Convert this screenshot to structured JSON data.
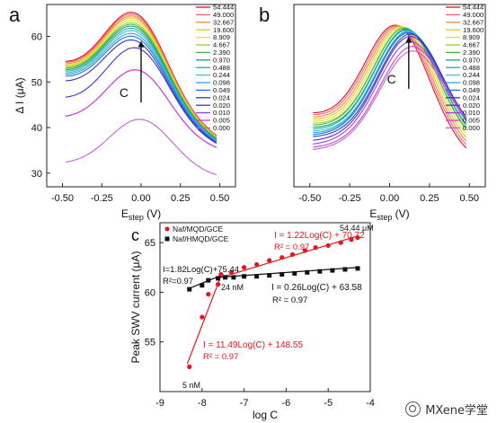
{
  "chart_data": [
    {
      "panel_label": "a",
      "type": "line",
      "xlabel": "E",
      "xlabel_sub": "step",
      "xlabel_unit": " (V)",
      "ylabel": "Δ I (μA)",
      "xlim": [
        -0.6,
        0.6
      ],
      "ylim": [
        27,
        67
      ],
      "xticks": [
        -0.5,
        -0.25,
        0.0,
        0.25,
        0.5
      ],
      "xtick_labels": [
        "-0.50",
        "-0.25",
        "0.00",
        "0.25",
        "0.50"
      ],
      "yticks": [
        30,
        40,
        50,
        60
      ],
      "ytick_labels": [
        "30",
        "40",
        "50",
        "60"
      ],
      "x_range": [
        -0.48,
        0.48
      ],
      "annotation": "C",
      "arrow": {
        "x": 0.0,
        "y_from": 45.5,
        "y_to": 59.0
      },
      "legend_position": "right",
      "series": [
        {
          "name": "54.444",
          "color": "#e0101e",
          "peak": 65.0,
          "left": 53.0,
          "right": 37.5,
          "peak_x": -0.03
        },
        {
          "name": "49.000",
          "color": "#ff6070",
          "peak": 64.6,
          "left": 52.8,
          "right": 37.4,
          "peak_x": -0.03
        },
        {
          "name": "32.667",
          "color": "#f08a3a",
          "peak": 64.2,
          "left": 52.5,
          "right": 37.3,
          "peak_x": -0.03
        },
        {
          "name": "19.600",
          "color": "#f4c020",
          "peak": 63.8,
          "left": 52.2,
          "right": 37.2,
          "peak_x": -0.03
        },
        {
          "name": "8.909",
          "color": "#e0e040",
          "peak": 63.3,
          "left": 52.0,
          "right": 37.1,
          "peak_x": -0.03
        },
        {
          "name": "4.667",
          "color": "#9ad03a",
          "peak": 62.8,
          "left": 51.8,
          "right": 37.0,
          "peak_x": -0.03
        },
        {
          "name": "2.390",
          "color": "#40b840",
          "peak": 62.4,
          "left": 51.6,
          "right": 36.9,
          "peak_x": -0.03
        },
        {
          "name": "0.970",
          "color": "#20a070",
          "peak": 62.0,
          "left": 51.3,
          "right": 36.8,
          "peak_x": -0.03
        },
        {
          "name": "0.488",
          "color": "#20b0a0",
          "peak": 61.5,
          "left": 51.0,
          "right": 36.6,
          "peak_x": -0.03
        },
        {
          "name": "0.244",
          "color": "#40c0d0",
          "peak": 61.0,
          "left": 50.7,
          "right": 36.5,
          "peak_x": -0.03
        },
        {
          "name": "0.098",
          "color": "#30a0e0",
          "peak": 60.4,
          "left": 50.4,
          "right": 36.4,
          "peak_x": -0.03
        },
        {
          "name": "0.049",
          "color": "#2070e0",
          "peak": 59.8,
          "left": 50.0,
          "right": 36.2,
          "peak_x": -0.03
        },
        {
          "name": "0.024",
          "color": "#2040c0",
          "peak": 59.0,
          "left": 49.0,
          "right": 36.0,
          "peak_x": -0.03
        },
        {
          "name": "0.020",
          "color": "#4a30d0",
          "peak": 57.4,
          "left": 45.5,
          "right": 35.8,
          "peak_x": -0.02
        },
        {
          "name": "0.010",
          "color": "#9a40e0",
          "peak": 52.6,
          "left": 41.5,
          "right": 35.0,
          "peak_x": -0.02
        },
        {
          "name": "0.005",
          "color": "#d040d0",
          "peak": 52.6,
          "left": 41.5,
          "right": 35.0,
          "peak_x": -0.02
        },
        {
          "name": "0.000",
          "color": "#c060e0",
          "peak": 41.8,
          "left": 31.8,
          "right": 29.0,
          "peak_x": 0.0
        }
      ]
    },
    {
      "panel_label": "b",
      "type": "line",
      "xlabel": "E",
      "xlabel_sub": "step",
      "xlabel_unit": " (V)",
      "ylabel": "",
      "xlim": [
        -0.6,
        0.6
      ],
      "ylim": [
        27,
        67
      ],
      "xticks": [
        -0.5,
        -0.25,
        0.0,
        0.25,
        0.5
      ],
      "xtick_labels": [
        "-0.50",
        "-0.25",
        "0.00",
        "0.25",
        "0.50"
      ],
      "yticks": [],
      "ytick_labels": [],
      "x_range": [
        -0.48,
        0.48
      ],
      "annotation": "C",
      "arrow": {
        "x": 0.12,
        "y_from": 48.5,
        "y_to": 60.0
      },
      "legend_position": "right",
      "series": [
        {
          "name": "54.444",
          "color": "#e0101e",
          "peak": 62.4,
          "left": 42.5,
          "right": 33.0,
          "peak_x": 0.05
        },
        {
          "name": "49.000",
          "color": "#ff6070",
          "peak": 62.3,
          "left": 42.2,
          "right": 33.5,
          "peak_x": 0.06
        },
        {
          "name": "32.667",
          "color": "#f08a3a",
          "peak": 62.2,
          "left": 41.8,
          "right": 34.0,
          "peak_x": 0.07
        },
        {
          "name": "19.600",
          "color": "#f4c020",
          "peak": 62.1,
          "left": 41.4,
          "right": 34.5,
          "peak_x": 0.08
        },
        {
          "name": "8.909",
          "color": "#e0e040",
          "peak": 62.0,
          "left": 41.0,
          "right": 35.0,
          "peak_x": 0.09
        },
        {
          "name": "4.667",
          "color": "#9ad03a",
          "peak": 61.9,
          "left": 40.6,
          "right": 35.5,
          "peak_x": 0.1
        },
        {
          "name": "2.390",
          "color": "#40b840",
          "peak": 61.8,
          "left": 40.2,
          "right": 35.9,
          "peak_x": 0.1
        },
        {
          "name": "0.970",
          "color": "#20a070",
          "peak": 61.6,
          "left": 39.8,
          "right": 36.2,
          "peak_x": 0.11
        },
        {
          "name": "0.488",
          "color": "#20b0a0",
          "peak": 61.4,
          "left": 39.4,
          "right": 36.5,
          "peak_x": 0.11
        },
        {
          "name": "0.244",
          "color": "#40c0d0",
          "peak": 61.2,
          "left": 39.0,
          "right": 36.8,
          "peak_x": 0.12
        },
        {
          "name": "0.098",
          "color": "#30a0e0",
          "peak": 61.0,
          "left": 38.6,
          "right": 37.0,
          "peak_x": 0.12
        },
        {
          "name": "0.049",
          "color": "#2070e0",
          "peak": 60.8,
          "left": 38.2,
          "right": 37.2,
          "peak_x": 0.12
        },
        {
          "name": "0.024",
          "color": "#2040c0",
          "peak": 60.5,
          "left": 37.8,
          "right": 37.4,
          "peak_x": 0.13
        },
        {
          "name": "0.020",
          "color": "#4a30d0",
          "peak": 60.0,
          "left": 37.0,
          "right": 37.5,
          "peak_x": 0.13
        },
        {
          "name": "0.010",
          "color": "#9a40e0",
          "peak": 58.8,
          "left": 36.2,
          "right": 37.5,
          "peak_x": 0.13
        },
        {
          "name": "0.005",
          "color": "#d040d0",
          "peak": 57.8,
          "left": 35.5,
          "right": 37.3,
          "peak_x": 0.14
        },
        {
          "name": "0.000",
          "color": "#c060e0",
          "peak": 56.8,
          "left": 35.0,
          "right": 37.2,
          "peak_x": 0.14
        }
      ]
    },
    {
      "panel_label": "c",
      "type": "scatter",
      "xlabel": "log C",
      "ylabel": "Peak SWV current (μA)",
      "xlim": [
        -9,
        -4
      ],
      "ylim": [
        50,
        67
      ],
      "xticks": [
        -9,
        -8,
        -7,
        -6,
        -5,
        -4
      ],
      "xtick_labels": [
        "-9",
        "-8",
        "-7",
        "-6",
        "-5",
        "-4"
      ],
      "yticks": [
        55,
        60,
        65
      ],
      "ytick_labels": [
        "55",
        "60",
        "65"
      ],
      "legend_position": "top-left",
      "series": [
        {
          "name": "Naf/MQD/GCE",
          "color": "#e8141c",
          "marker": "circle",
          "x": [
            -8.3,
            -8.0,
            -7.85,
            -7.62,
            -7.55,
            -7.3,
            -7.0,
            -6.7,
            -6.4,
            -6.1,
            -5.85,
            -5.55,
            -5.3,
            -5.0,
            -4.7,
            -4.45,
            -4.3
          ],
          "y": [
            52.5,
            57.5,
            59.8,
            60.8,
            61.8,
            62.0,
            62.5,
            62.8,
            63.2,
            63.5,
            63.8,
            64.2,
            64.5,
            64.7,
            65.0,
            65.3,
            65.5
          ]
        },
        {
          "name": "Naf/HMQD/GCE",
          "color": "#111111",
          "marker": "square",
          "x": [
            -8.3,
            -8.0,
            -7.85,
            -7.62,
            -7.45,
            -7.25,
            -7.0,
            -6.7,
            -6.4,
            -6.1,
            -5.8,
            -5.5,
            -5.2,
            -4.9,
            -4.6,
            -4.3
          ],
          "y": [
            60.3,
            60.7,
            61.2,
            61.4,
            61.5,
            61.5,
            61.6,
            61.6,
            61.7,
            61.8,
            61.9,
            62.0,
            62.1,
            62.2,
            62.3,
            62.4
          ]
        }
      ],
      "fit_lines": [
        {
          "color": "#e8141c",
          "x": [
            -8.35,
            -7.58
          ],
          "y": [
            52.8,
            61.3
          ]
        },
        {
          "color": "#e8141c",
          "x": [
            -7.62,
            -4.35
          ],
          "y": [
            61.4,
            65.6
          ]
        },
        {
          "color": "#111111",
          "x": [
            -8.35,
            -7.6
          ],
          "y": [
            60.3,
            61.6
          ]
        },
        {
          "color": "#111111",
          "x": [
            -7.62,
            -4.3
          ],
          "y": [
            61.5,
            62.5
          ]
        }
      ],
      "annotations": [
        {
          "text": "I = 1.22Log(C) + 70.72",
          "color": "#e8141c"
        },
        {
          "text": "R² = 0.97",
          "color": "#e8141c"
        },
        {
          "text": "54.44 μM",
          "color": "#111111"
        },
        {
          "text": "I=1.82Log(C)+75.44",
          "color": "#111111"
        },
        {
          "text": "R²=0.97",
          "color": "#111111"
        },
        {
          "text": "24 nM",
          "color": "#111111"
        },
        {
          "text": "I = 0.26Log(C) + 63.58",
          "color": "#111111"
        },
        {
          "text": "R² = 0.97",
          "color": "#111111"
        },
        {
          "text": "I = 11.49Log(C) + 148.55",
          "color": "#e8141c"
        },
        {
          "text": "R² = 0.97",
          "color": "#e8141c"
        },
        {
          "text": "5 nM",
          "color": "#111111"
        }
      ]
    }
  ],
  "watermark": {
    "text": "MXene学堂",
    "icon": "wechat-icon"
  }
}
